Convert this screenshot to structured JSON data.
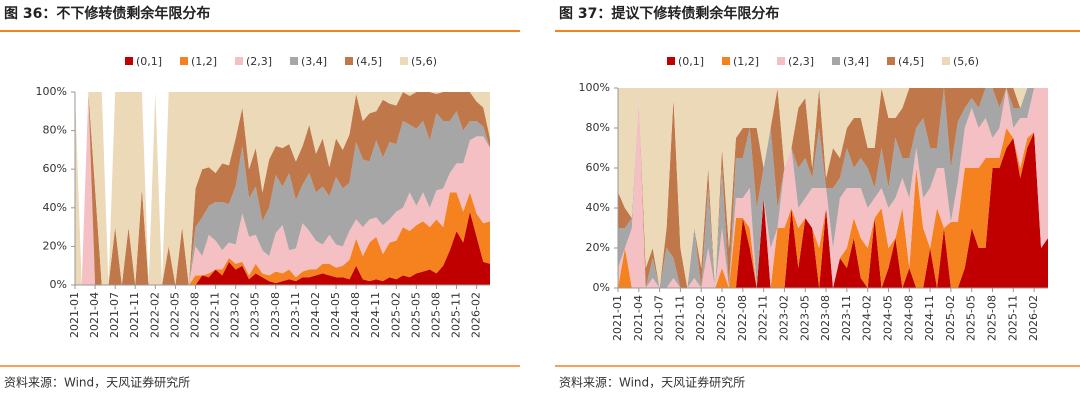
{
  "chart_data": [
    {
      "type": "area",
      "stacked": true,
      "title": "图 36：不下修转债剩余年限分布",
      "source": "资料来源：Wind，天风证券研究所",
      "categories": [
        "2021-01",
        null,
        null,
        "2021-04",
        null,
        null,
        "2021-07",
        null,
        null,
        "2021-11",
        null,
        null,
        "2022-02",
        null,
        null,
        "2022-05",
        null,
        null,
        "2022-08",
        null,
        null,
        "2022-11",
        null,
        null,
        "2023-02",
        null,
        null,
        "2023-05",
        null,
        null,
        "2023-08",
        null,
        null,
        "2023-11",
        null,
        null,
        "2024-02",
        null,
        null,
        "2024-05",
        null,
        null,
        "2024-08",
        null,
        null,
        "2024-11",
        null,
        null,
        "2025-02",
        null,
        null,
        "2025-05",
        null,
        null,
        "2025-08",
        null,
        null,
        "2025-11",
        null,
        null,
        "2026-02",
        null,
        null
      ],
      "ylim": [
        0,
        100
      ],
      "yticks": [
        {
          "value": 0,
          "label": "0%"
        },
        {
          "value": 20,
          "label": "20%"
        },
        {
          "value": 40,
          "label": "40%"
        },
        {
          "value": 60,
          "label": "60%"
        },
        {
          "value": 80,
          "label": "80%"
        },
        {
          "value": 100,
          "label": "100%"
        }
      ],
      "grid": false,
      "legend": "top",
      "series": [
        {
          "name": "(0,1]",
          "color": "#c00000",
          "values": [
            0,
            0,
            0,
            0,
            0,
            0,
            0,
            0,
            0,
            0,
            0,
            0,
            0,
            0,
            0,
            0,
            0,
            0,
            0,
            5,
            4,
            8,
            5,
            12,
            8,
            10,
            3,
            6,
            4,
            2,
            1,
            2,
            3,
            2,
            4,
            4,
            5,
            6,
            5,
            4,
            4,
            3,
            10,
            3,
            2,
            3,
            2,
            4,
            3,
            5,
            4,
            6,
            7,
            8,
            6,
            10,
            18,
            28,
            22,
            38,
            25,
            12,
            11
          ]
        },
        {
          "name": "(1,2]",
          "color": "#f5821f",
          "values": [
            0,
            0,
            0,
            0,
            0,
            0,
            0,
            0,
            0,
            0,
            0,
            0,
            0,
            0,
            0,
            0,
            0,
            0,
            5,
            0,
            2,
            0,
            3,
            2,
            3,
            2,
            2,
            5,
            2,
            3,
            6,
            4,
            5,
            2,
            3,
            4,
            3,
            5,
            6,
            5,
            6,
            10,
            14,
            12,
            20,
            22,
            14,
            18,
            20,
            25,
            24,
            25,
            26,
            22,
            28,
            20,
            30,
            20,
            16,
            10,
            12,
            20,
            22
          ]
        },
        {
          "name": "(2,3]",
          "color": "#f4c0c4",
          "values": [
            0,
            0,
            100,
            0,
            0,
            0,
            0,
            0,
            0,
            0,
            0,
            0,
            0,
            0,
            0,
            0,
            0,
            0,
            15,
            10,
            20,
            15,
            10,
            8,
            10,
            25,
            20,
            15,
            12,
            10,
            20,
            25,
            10,
            15,
            25,
            20,
            15,
            10,
            15,
            12,
            10,
            15,
            10,
            15,
            12,
            10,
            15,
            12,
            15,
            10,
            20,
            10,
            15,
            10,
            15,
            20,
            10,
            15,
            25,
            27,
            40,
            45,
            38
          ]
        },
        {
          "name": "(3,4]",
          "color": "#a6a6a6",
          "values": [
            0,
            0,
            0,
            0,
            0,
            0,
            0,
            0,
            0,
            0,
            0,
            0,
            0,
            0,
            0,
            0,
            0,
            0,
            10,
            20,
            15,
            20,
            25,
            20,
            30,
            35,
            20,
            25,
            15,
            25,
            30,
            20,
            40,
            25,
            20,
            30,
            25,
            30,
            20,
            35,
            30,
            25,
            40,
            35,
            30,
            40,
            35,
            40,
            35,
            45,
            35,
            40,
            37,
            35,
            40,
            35,
            27,
            27,
            17,
            10,
            8,
            5,
            0
          ]
        },
        {
          "name": "(4,5]",
          "color": "#c0784a",
          "values": [
            0,
            0,
            0,
            50,
            0,
            0,
            30,
            0,
            30,
            0,
            50,
            0,
            0,
            0,
            20,
            0,
            30,
            0,
            20,
            25,
            20,
            15,
            20,
            20,
            25,
            20,
            15,
            20,
            15,
            25,
            15,
            20,
            15,
            20,
            20,
            25,
            20,
            25,
            15,
            20,
            20,
            25,
            25,
            20,
            25,
            15,
            30,
            20,
            20,
            15,
            15,
            19,
            15,
            25,
            10,
            15,
            15,
            10,
            20,
            15,
            10,
            10,
            5
          ]
        },
        {
          "name": "(5,6)",
          "color": "#ecd9b8",
          "values": [
            100,
            0,
            0,
            50,
            100,
            0,
            70,
            100,
            70,
            100,
            50,
            0,
            100,
            0,
            80,
            100,
            70,
            100,
            50,
            40,
            39,
            42,
            37,
            38,
            24,
            8,
            40,
            29,
            52,
            35,
            28,
            29,
            27,
            36,
            28,
            17,
            32,
            24,
            39,
            24,
            30,
            22,
            1,
            15,
            11,
            10,
            4,
            6,
            7,
            0,
            2,
            0,
            0,
            0,
            1,
            0,
            0,
            0,
            0,
            0,
            5,
            8,
            24
          ]
        }
      ]
    },
    {
      "type": "area",
      "stacked": true,
      "title": "图 37：提议下修转债剩余年限分布",
      "source": "资料来源：Wind，天风证券研究所",
      "categories": [
        "2021-01",
        null,
        null,
        "2021-04",
        null,
        null,
        "2021-07",
        null,
        null,
        "2021-11",
        null,
        null,
        "2022-02",
        null,
        null,
        "2022-05",
        null,
        null,
        "2022-08",
        null,
        null,
        "2022-11",
        null,
        null,
        "2023-02",
        null,
        null,
        "2023-05",
        null,
        null,
        "2023-08",
        null,
        null,
        "2023-11",
        null,
        null,
        "2024-02",
        null,
        null,
        "2024-05",
        null,
        null,
        "2024-08",
        null,
        null,
        "2024-11",
        null,
        null,
        "2025-02",
        null,
        null,
        "2025-05",
        null,
        null,
        "2025-08",
        null,
        null,
        "2025-11",
        null,
        null,
        "2026-02",
        null,
        null
      ],
      "ylim": [
        0,
        100
      ],
      "yticks": [
        {
          "value": 0,
          "label": "0%"
        },
        {
          "value": 20,
          "label": "20%"
        },
        {
          "value": 40,
          "label": "40%"
        },
        {
          "value": 60,
          "label": "60%"
        },
        {
          "value": 80,
          "label": "80%"
        },
        {
          "value": 100,
          "label": "100%"
        }
      ],
      "grid": false,
      "legend": "top",
      "series": [
        {
          "name": "(0,1]",
          "color": "#c00000",
          "values": [
            0,
            0,
            0,
            0,
            0,
            0,
            0,
            0,
            0,
            0,
            0,
            0,
            0,
            0,
            0,
            0,
            0,
            0,
            35,
            20,
            0,
            45,
            0,
            0,
            0,
            40,
            10,
            35,
            30,
            0,
            40,
            0,
            15,
            10,
            25,
            5,
            0,
            35,
            0,
            10,
            25,
            0,
            10,
            0,
            0,
            20,
            0,
            30,
            0,
            0,
            10,
            30,
            20,
            20,
            60,
            60,
            70,
            75,
            55,
            70,
            78,
            20,
            25
          ]
        },
        {
          "name": "(1,2]",
          "color": "#f5821f",
          "values": [
            0,
            20,
            0,
            0,
            0,
            0,
            0,
            0,
            0,
            0,
            0,
            0,
            0,
            0,
            0,
            10,
            0,
            35,
            0,
            10,
            0,
            0,
            0,
            30,
            30,
            0,
            20,
            0,
            0,
            20,
            0,
            0,
            0,
            10,
            10,
            20,
            20,
            0,
            40,
            10,
            0,
            40,
            0,
            60,
            30,
            0,
            40,
            0,
            33,
            33,
            50,
            30,
            40,
            45,
            5,
            5,
            10,
            0,
            5,
            5,
            0,
            0,
            0
          ]
        },
        {
          "name": "(2,3]",
          "color": "#f4c0c4",
          "values": [
            10,
            0,
            30,
            95,
            0,
            5,
            0,
            0,
            5,
            0,
            0,
            5,
            0,
            20,
            0,
            20,
            0,
            10,
            10,
            20,
            0,
            0,
            20,
            0,
            30,
            30,
            10,
            10,
            20,
            30,
            10,
            20,
            30,
            30,
            15,
            25,
            20,
            10,
            10,
            20,
            20,
            15,
            35,
            10,
            15,
            30,
            20,
            30,
            0,
            20,
            20,
            30,
            20,
            20,
            10,
            15,
            20,
            5,
            25,
            10,
            22,
            80,
            75
          ]
        },
        {
          "name": "(3,4]",
          "color": "#a6a6a6",
          "values": [
            20,
            10,
            5,
            0,
            0,
            10,
            0,
            20,
            10,
            0,
            0,
            25,
            0,
            30,
            0,
            30,
            0,
            20,
            20,
            30,
            40,
            15,
            60,
            10,
            0,
            0,
            20,
            20,
            5,
            30,
            0,
            30,
            10,
            20,
            10,
            15,
            20,
            5,
            20,
            10,
            30,
            10,
            20,
            10,
            40,
            20,
            10,
            40,
            27,
            30,
            10,
            5,
            10,
            15,
            25,
            10,
            0,
            10,
            5,
            15,
            0,
            0,
            0
          ]
        },
        {
          "name": "(4,5]",
          "color": "#c0784a",
          "values": [
            18,
            10,
            0,
            0,
            10,
            5,
            0,
            10,
            80,
            20,
            0,
            0,
            10,
            10,
            0,
            10,
            20,
            10,
            15,
            0,
            40,
            0,
            0,
            60,
            0,
            0,
            30,
            30,
            5,
            20,
            5,
            20,
            10,
            10,
            25,
            20,
            10,
            20,
            30,
            35,
            10,
            25,
            35,
            20,
            15,
            30,
            30,
            0,
            40,
            17,
            10,
            5,
            10,
            0,
            0,
            10,
            0,
            10,
            0,
            0,
            0,
            0,
            0
          ]
        },
        {
          "name": "(5,6)",
          "color": "#ecd9b8",
          "values": [
            52,
            60,
            65,
            5,
            90,
            80,
            100,
            70,
            5,
            80,
            100,
            70,
            90,
            40,
            100,
            30,
            80,
            25,
            20,
            20,
            20,
            40,
            20,
            0,
            40,
            30,
            10,
            5,
            40,
            0,
            45,
            30,
            35,
            20,
            15,
            15,
            30,
            30,
            0,
            15,
            15,
            10,
            0,
            0,
            0,
            0,
            0,
            0,
            0,
            0,
            0,
            0,
            0,
            0,
            0,
            0,
            0,
            0,
            10,
            0,
            0,
            0,
            0
          ]
        }
      ]
    }
  ]
}
